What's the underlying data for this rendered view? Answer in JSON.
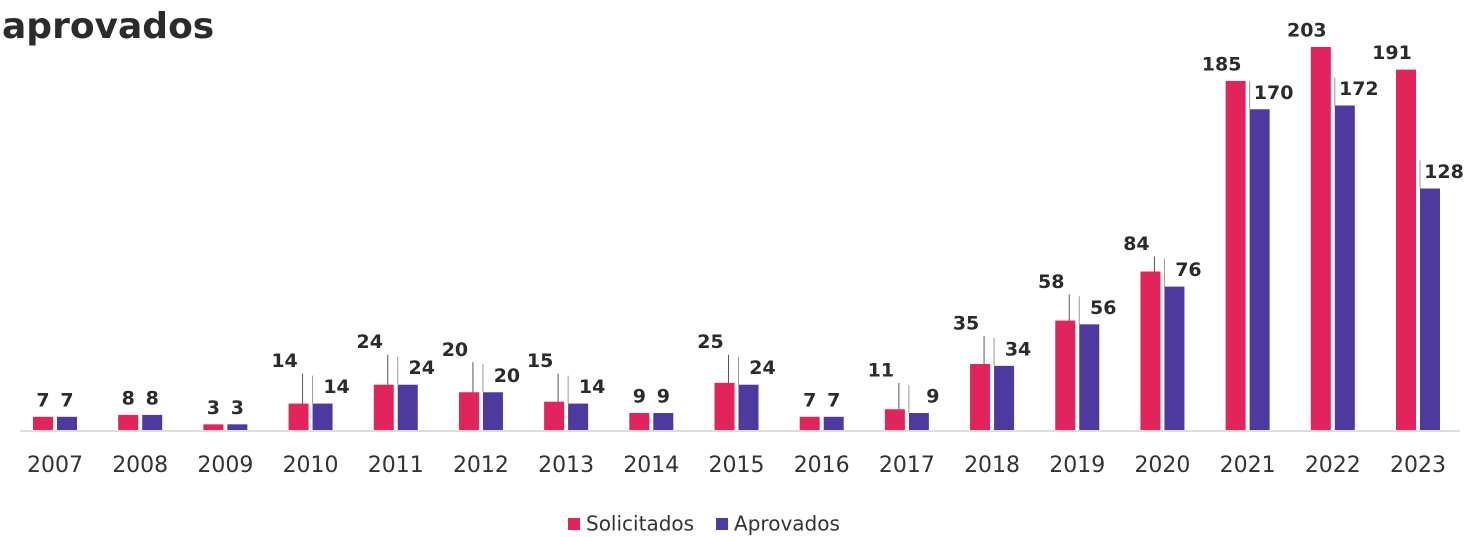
{
  "chart_data": {
    "type": "bar",
    "title": "aprovados",
    "categories": [
      "2007",
      "2008",
      "2009",
      "2010",
      "2011",
      "2012",
      "2013",
      "2014",
      "2015",
      "2016",
      "2017",
      "2018",
      "2019",
      "2020",
      "2021",
      "2022",
      "2023"
    ],
    "series": [
      {
        "name": "Solicitados",
        "color": "#e1245c",
        "values": [
          7,
          8,
          3,
          14,
          24,
          20,
          15,
          9,
          25,
          7,
          11,
          35,
          58,
          84,
          185,
          203,
          191
        ]
      },
      {
        "name": "Aprovados",
        "color": "#4e3a9e",
        "values": [
          7,
          8,
          3,
          14,
          24,
          20,
          14,
          9,
          24,
          7,
          9,
          34,
          56,
          76,
          170,
          172,
          128
        ]
      }
    ]
  }
}
